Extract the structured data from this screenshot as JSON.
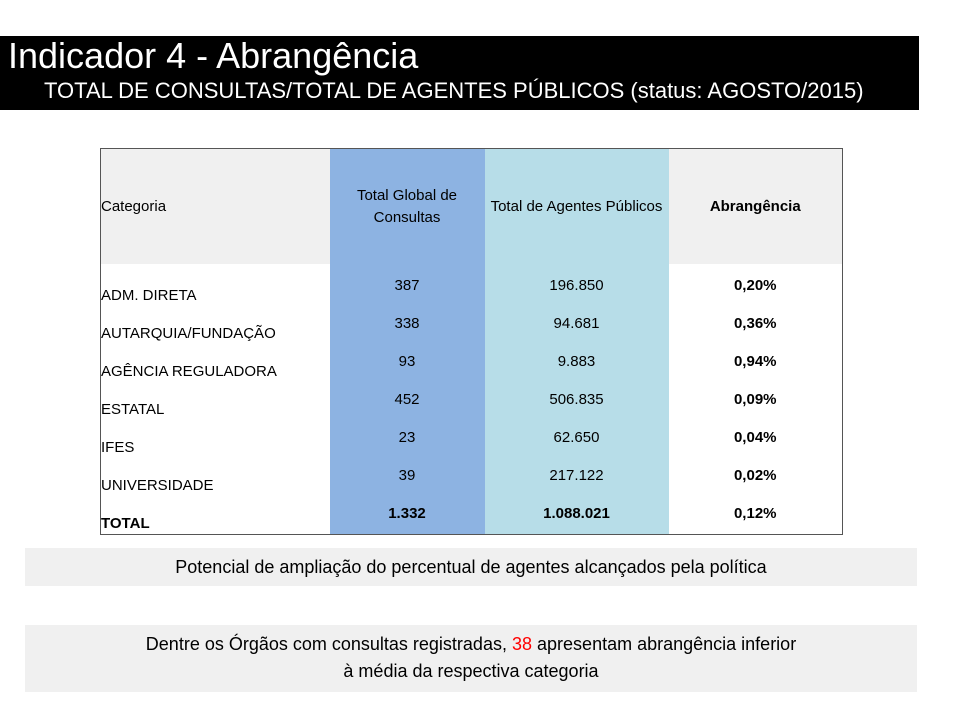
{
  "header": {
    "title": "Indicador 4 - Abrangência",
    "subtitle": "TOTAL DE CONSULTAS/TOTAL DE AGENTES PÚBLICOS (status: AGOSTO/2015)"
  },
  "table": {
    "headers": [
      "Categoria",
      "Total Global de Consultas",
      "Total de Agentes Públicos",
      "Abrangência"
    ],
    "rows": [
      {
        "categoria": "ADM. DIRETA",
        "consultas": "387",
        "agentes": "196.850",
        "abrangencia": "0,20%"
      },
      {
        "categoria": "AUTARQUIA/FUNDAÇÃO",
        "consultas": "338",
        "agentes": "94.681",
        "abrangencia": "0,36%"
      },
      {
        "categoria": "AGÊNCIA REGULADORA",
        "consultas": "93",
        "agentes": "9.883",
        "abrangencia": "0,94%"
      },
      {
        "categoria": "ESTATAL",
        "consultas": "452",
        "agentes": "506.835",
        "abrangencia": "0,09%"
      },
      {
        "categoria": "IFES",
        "consultas": "23",
        "agentes": "62.650",
        "abrangencia": "0,04%"
      },
      {
        "categoria": "UNIVERSIDADE",
        "consultas": "39",
        "agentes": "217.122",
        "abrangencia": "0,02%"
      }
    ],
    "total": {
      "categoria": "TOTAL",
      "consultas": "1.332",
      "agentes": "1.088.021",
      "abrangencia": "0,12%"
    }
  },
  "notes": {
    "note1": "Potencial de ampliação do percentual de agentes alcançados pela política",
    "note2_before": "Dentre os Órgãos com consultas registradas,",
    "note2_number": "38",
    "note2_after": "apresentam abrangência inferior",
    "note2_line2": "à média da respectiva categoria"
  },
  "colors": {
    "header_bg": "#000000",
    "consultas_col": "#8db3e2",
    "agentes_col": "#b7dde8",
    "note_bg": "#f0f0f0",
    "highlight": "#ff0000"
  }
}
